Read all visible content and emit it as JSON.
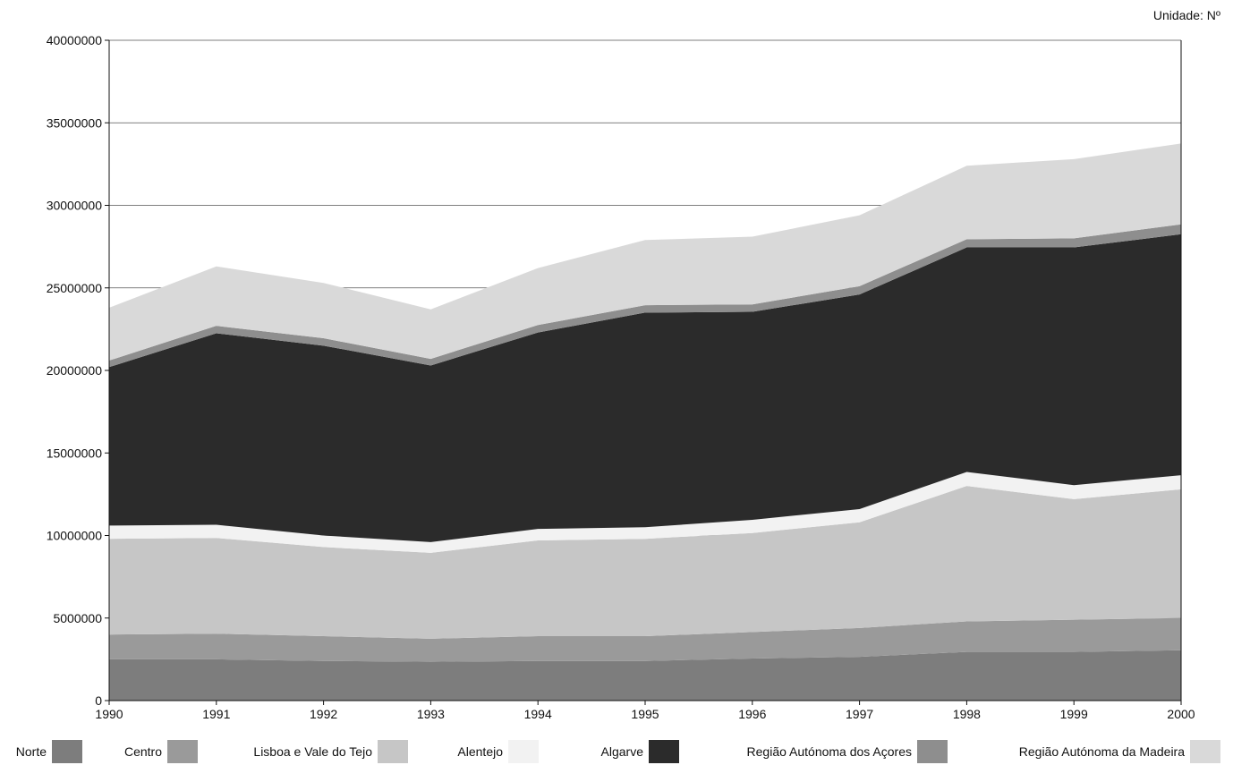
{
  "unit_label": "Unidade: Nº",
  "chart_data": {
    "type": "area",
    "stacked": true,
    "x": [
      "1990",
      "1991",
      "1992",
      "1993",
      "1994",
      "1995",
      "1996",
      "1997",
      "1998",
      "1999",
      "2000"
    ],
    "ylim": [
      0,
      40000000
    ],
    "yticks": [
      "0",
      "5000000",
      "10000000",
      "15000000",
      "20000000",
      "25000000",
      "30000000",
      "35000000",
      "40000000"
    ],
    "grid": true,
    "legend_position": "bottom",
    "series": [
      {
        "name": "Norte",
        "color": "#7d7d7d",
        "values": [
          2500000,
          2500000,
          2400000,
          2350000,
          2400000,
          2400000,
          2550000,
          2650000,
          2950000,
          2950000,
          3050000
        ]
      },
      {
        "name": "Centro",
        "color": "#9a9a9a",
        "values": [
          1500000,
          1550000,
          1500000,
          1400000,
          1500000,
          1500000,
          1600000,
          1750000,
          1850000,
          1950000,
          1950000
        ]
      },
      {
        "name": "Lisboa e Vale do Tejo",
        "color": "#c6c6c6",
        "values": [
          5800000,
          5800000,
          5400000,
          5200000,
          5800000,
          5900000,
          6000000,
          6400000,
          8200000,
          7300000,
          7800000
        ]
      },
      {
        "name": "Alentejo",
        "color": "#f2f2f2",
        "values": [
          800000,
          800000,
          700000,
          650000,
          700000,
          700000,
          800000,
          800000,
          850000,
          850000,
          850000
        ]
      },
      {
        "name": "Algarve",
        "color": "#2b2b2b",
        "values": [
          9600000,
          11600000,
          11500000,
          10700000,
          11900000,
          13000000,
          12600000,
          13000000,
          13600000,
          14400000,
          14600000
        ]
      },
      {
        "name": "Região Autónoma dos Açores",
        "color": "#8e8e8e",
        "values": [
          400000,
          450000,
          450000,
          400000,
          450000,
          450000,
          450000,
          500000,
          500000,
          550000,
          600000
        ]
      },
      {
        "name": "Região Autónoma da Madeira",
        "color": "#d9d9d9",
        "values": [
          3200000,
          3600000,
          3350000,
          3000000,
          3450000,
          3950000,
          4100000,
          4300000,
          4450000,
          4800000,
          4900000
        ]
      }
    ]
  }
}
